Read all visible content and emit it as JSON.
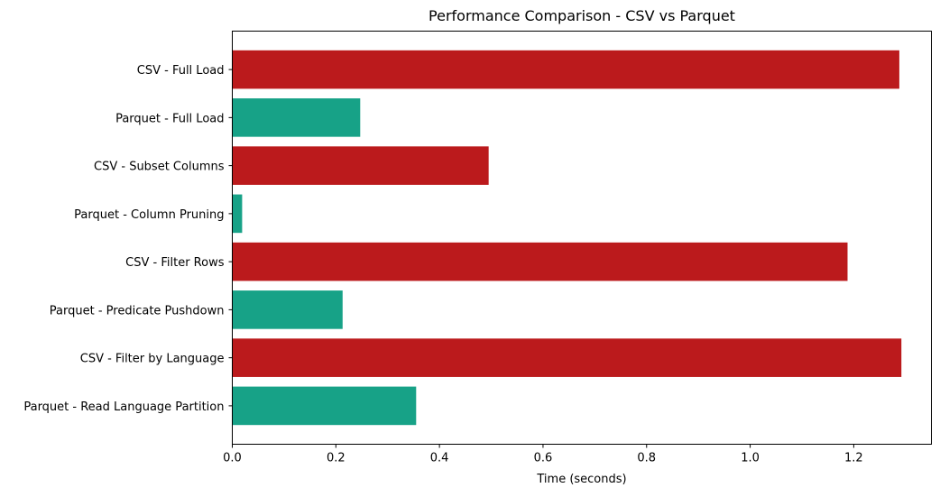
{
  "chart_data": {
    "type": "bar",
    "orientation": "horizontal",
    "title": "Performance Comparison - CSV vs Parquet",
    "xlabel": "Time (seconds)",
    "ylabel": "",
    "xlim": [
      0,
      1.35
    ],
    "xticks": [
      "0.0",
      "0.2",
      "0.4",
      "0.6",
      "0.8",
      "1.0",
      "1.2"
    ],
    "grid": false,
    "categories": [
      "CSV - Full Load",
      "Parquet - Full Load",
      "CSV - Subset Columns",
      "Parquet - Column Pruning",
      "CSV - Filter Rows",
      "Parquet - Predicate Pushdown",
      "CSV - Filter by Language",
      "Parquet - Read Language Partition"
    ],
    "values": [
      1.288,
      0.247,
      0.495,
      0.019,
      1.188,
      0.213,
      1.292,
      0.355
    ],
    "colors": [
      "#bb1a1c",
      "#17a287",
      "#bb1a1c",
      "#17a287",
      "#bb1a1c",
      "#17a287",
      "#bb1a1c",
      "#17a287"
    ]
  }
}
